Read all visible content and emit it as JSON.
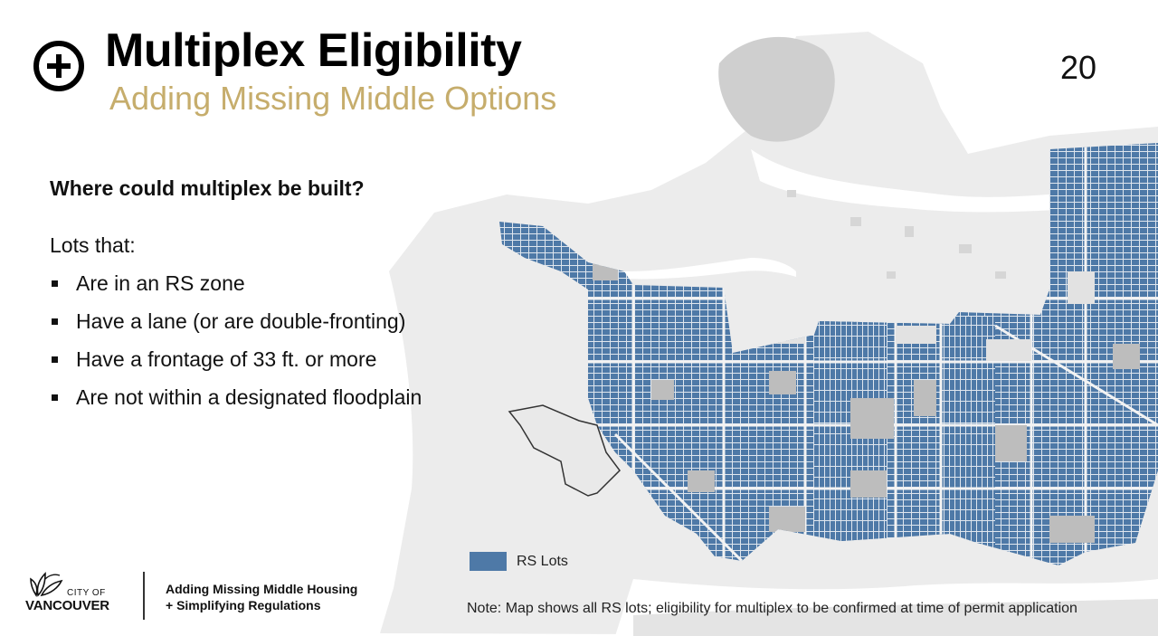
{
  "slide": {
    "title": "Multiplex Eligibility",
    "subtitle": "Adding Missing Middle Options",
    "page_number": "20",
    "title_icon": "plus-circle-icon"
  },
  "content": {
    "question": "Where could multiplex be built?",
    "lots_intro": "Lots that:",
    "criteria": [
      "Are in an RS zone",
      "Have a lane (or are double-fronting)",
      "Have a frontage of 33 ft. or more",
      "Are not within a designated floodplain"
    ]
  },
  "map": {
    "legend_label": "RS Lots",
    "legend_color": "#4e79a7",
    "land_color": "#ececec",
    "park_color": "#bdbdbd",
    "water_color": "#ffffff",
    "note": "Note: Map shows all RS lots; eligibility for multiplex to be confirmed at time of permit application"
  },
  "footer": {
    "city_of": "CITY OF",
    "city_name": "VANCOUVER",
    "line1": "Adding Missing Middle Housing",
    "line2": "+ Simplifying Regulations",
    "logo_icon": "city-of-vancouver-logo"
  },
  "colors": {
    "accent_gold": "#c6ad6c",
    "text": "#111111"
  }
}
